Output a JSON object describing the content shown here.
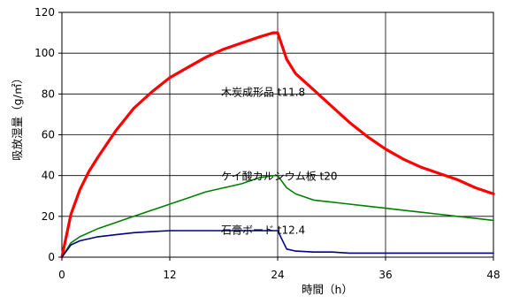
{
  "chart_data": {
    "type": "line",
    "title": "",
    "xlabel": "時間（h）",
    "ylabel": "吸放湿量（g/㎡）",
    "xlim": [
      0,
      48
    ],
    "ylim": [
      0,
      120
    ],
    "x_ticks": [
      "0",
      "12",
      "24",
      "36",
      "48"
    ],
    "y_ticks": [
      "0",
      "20",
      "40",
      "60",
      "80",
      "100",
      "120"
    ],
    "grid": true,
    "legend": "inline labels",
    "series": [
      {
        "name": "木炭成形品 t11.8",
        "color": "#ff0000",
        "x": [
          0,
          1,
          2,
          3,
          4,
          6,
          8,
          10,
          12,
          14,
          16,
          18,
          20,
          22,
          23.5,
          24,
          25,
          26,
          28,
          30,
          32,
          34,
          36,
          38,
          40,
          42,
          44,
          46,
          48
        ],
        "y": [
          0,
          21,
          33,
          42,
          49,
          62,
          73,
          81,
          88,
          93,
          98,
          102,
          105,
          108,
          110,
          110,
          97,
          90,
          82,
          74,
          66,
          59,
          53,
          48,
          44,
          41,
          38,
          34,
          31
        ]
      },
      {
        "name": "ケイ酸カルシウム板 t20",
        "color": "#008000",
        "x": [
          0,
          1,
          2,
          4,
          6,
          8,
          10,
          12,
          14,
          16,
          18,
          20,
          22,
          23.5,
          24,
          25,
          26,
          28,
          30,
          32,
          34,
          36,
          38,
          40,
          42,
          44,
          46,
          48
        ],
        "y": [
          0,
          7,
          10,
          14,
          17,
          20,
          23,
          26,
          29,
          32,
          34,
          36,
          39,
          40,
          40,
          34,
          31,
          28,
          27,
          26,
          25,
          24,
          23,
          22,
          21,
          20,
          19,
          18
        ]
      },
      {
        "name": "石膏ボード t12.4",
        "color": "#000080",
        "x": [
          0,
          1,
          2,
          4,
          6,
          8,
          10,
          12,
          14,
          16,
          18,
          20,
          22,
          23.5,
          24,
          25,
          26,
          28,
          30,
          32,
          34,
          36,
          38,
          40,
          42,
          44,
          46,
          48
        ],
        "y": [
          0,
          6,
          8,
          10,
          11,
          12,
          12.5,
          13,
          13,
          13,
          13,
          13,
          13,
          13,
          13,
          4,
          3,
          2.5,
          2.5,
          2,
          2,
          2,
          2,
          2,
          2,
          2,
          2,
          2
        ]
      }
    ],
    "label_anchor": [
      {
        "x": 17.7,
        "y": 79
      },
      {
        "x": 17.7,
        "y": 38
      },
      {
        "x": 17.7,
        "y": 11.5
      }
    ]
  }
}
